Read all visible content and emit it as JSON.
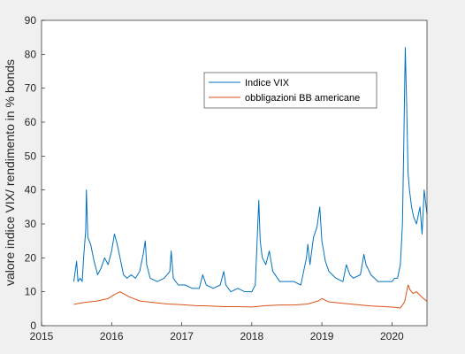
{
  "chart_data": {
    "type": "line",
    "title": "",
    "xlabel": "",
    "ylabel": "valore indice VIX/ rendimento in % bonds",
    "xlim": [
      2015,
      2020.5
    ],
    "ylim": [
      0,
      90
    ],
    "x_ticks": [
      "2015",
      "2016",
      "2017",
      "2018",
      "2019",
      "2020"
    ],
    "y_ticks": [
      "0",
      "10",
      "20",
      "30",
      "40",
      "50",
      "60",
      "70",
      "80",
      "90"
    ],
    "grid": false,
    "legend_position": "upper-center-right",
    "series": [
      {
        "name": "Indice VIX",
        "color": "#0072BD",
        "x": [
          2015.46,
          2015.5,
          2015.52,
          2015.55,
          2015.58,
          2015.6,
          2015.63,
          2015.64,
          2015.66,
          2015.7,
          2015.75,
          2015.8,
          2015.85,
          2015.9,
          2015.95,
          2016.0,
          2016.04,
          2016.08,
          2016.12,
          2016.17,
          2016.22,
          2016.28,
          2016.34,
          2016.4,
          2016.45,
          2016.48,
          2016.5,
          2016.55,
          2016.65,
          2016.75,
          2016.83,
          2016.85,
          2016.88,
          2016.95,
          2017.05,
          2017.15,
          2017.25,
          2017.3,
          2017.35,
          2017.45,
          2017.55,
          2017.6,
          2017.63,
          2017.7,
          2017.8,
          2017.9,
          2018.0,
          2018.05,
          2018.1,
          2018.12,
          2018.15,
          2018.2,
          2018.25,
          2018.3,
          2018.4,
          2018.5,
          2018.6,
          2018.7,
          2018.78,
          2018.8,
          2018.83,
          2018.88,
          2018.93,
          2018.97,
          2019.0,
          2019.05,
          2019.1,
          2019.2,
          2019.3,
          2019.35,
          2019.4,
          2019.45,
          2019.55,
          2019.6,
          2019.63,
          2019.7,
          2019.8,
          2019.9,
          2020.0,
          2020.04,
          2020.08,
          2020.12,
          2020.15,
          2020.17,
          2020.19,
          2020.21,
          2020.23,
          2020.25,
          2020.28,
          2020.31,
          2020.35,
          2020.4,
          2020.43,
          2020.46,
          2020.5
        ],
        "y": [
          13,
          19,
          13,
          14,
          13,
          20,
          28,
          40,
          26,
          24,
          19,
          15,
          17,
          20,
          18,
          22,
          27,
          24,
          20,
          15,
          14,
          15,
          14,
          16,
          21,
          25,
          18,
          14,
          13,
          14,
          16,
          22,
          14,
          12,
          12,
          11,
          11,
          15,
          12,
          11,
          12,
          16,
          12,
          10,
          11,
          10,
          10,
          12,
          37,
          25,
          20,
          18,
          22,
          16,
          13,
          13,
          13,
          12,
          20,
          24,
          18,
          26,
          29,
          35,
          25,
          19,
          16,
          14,
          13,
          18,
          15,
          14,
          15,
          21,
          18,
          15,
          13,
          13,
          13,
          14,
          14,
          18,
          30,
          55,
          82,
          65,
          45,
          40,
          35,
          32,
          30,
          35,
          27,
          40,
          33
        ]
      },
      {
        "name": "obbligazioni BB americane",
        "color": "#D95319",
        "x": [
          2015.46,
          2015.6,
          2015.8,
          2015.95,
          2016.05,
          2016.12,
          2016.25,
          2016.4,
          2016.6,
          2016.8,
          2017.0,
          2017.2,
          2017.4,
          2017.6,
          2017.8,
          2018.0,
          2018.2,
          2018.4,
          2018.6,
          2018.8,
          2018.95,
          2019.0,
          2019.1,
          2019.3,
          2019.5,
          2019.7,
          2019.9,
          2020.05,
          2020.12,
          2020.18,
          2020.21,
          2020.23,
          2020.26,
          2020.3,
          2020.35,
          2020.4,
          2020.45,
          2020.5
        ],
        "y": [
          6.3,
          6.8,
          7.3,
          8.0,
          9.3,
          10.0,
          8.5,
          7.3,
          6.8,
          6.4,
          6.2,
          5.9,
          5.8,
          5.6,
          5.6,
          5.5,
          5.9,
          6.1,
          6.1,
          6.4,
          7.3,
          8.0,
          7.0,
          6.6,
          6.2,
          5.8,
          5.6,
          5.4,
          5.2,
          7.0,
          10.0,
          12.0,
          10.5,
          9.5,
          10.0,
          9.0,
          8.0,
          7.2
        ]
      }
    ]
  }
}
